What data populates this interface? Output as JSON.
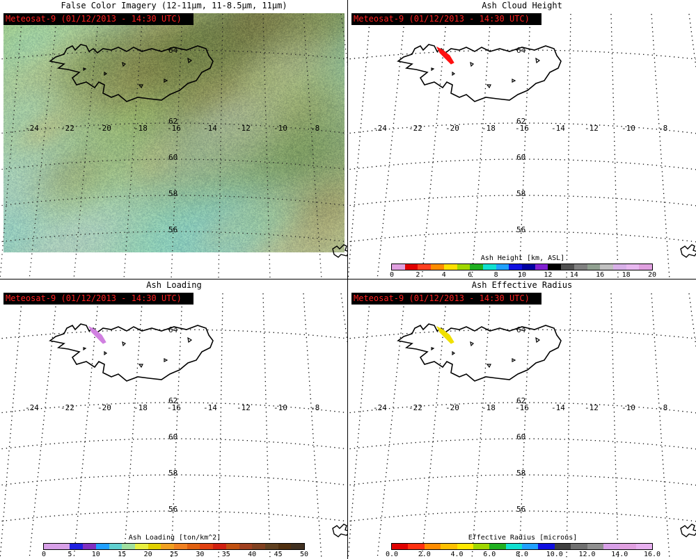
{
  "source": "Meteosat-9  (01/12/2013 - 14:30 UTC)",
  "lat_labels": [
    "64",
    "62",
    "60",
    "58",
    "56"
  ],
  "lon_labels": [
    "-24",
    "-22",
    "-20",
    "-18",
    "-16",
    "-14",
    "-12",
    "-10",
    "-8"
  ],
  "panels": [
    {
      "title": "False Color Imagery (12-11μm, 11-8.5μm, 11μm)",
      "kind": "false-color"
    },
    {
      "title": "Ash Cloud Height",
      "plume_color": "#ff1010",
      "colorbar": {
        "label": "Ash Height [km, ASL]",
        "ticks": [
          "0",
          "2",
          "4",
          "6",
          "8",
          "10",
          "12",
          "14",
          "16",
          "18",
          "20"
        ],
        "colors": [
          "#e0a0e0",
          "#e00000",
          "#ff4020",
          "#ff8c00",
          "#ffe000",
          "#a0d800",
          "#20b020",
          "#10e0d0",
          "#20a0ff",
          "#1010e0",
          "#0000a0",
          "#8020d0",
          "#000000",
          "#505050",
          "#808080",
          "#90a090",
          "#c0c0c0",
          "#d8b0e8",
          "#e8b8f0",
          "#e0a0e0"
        ]
      }
    },
    {
      "title": "Ash Loading",
      "plume_color": "#d080e0",
      "colorbar": {
        "label": "Ash Loading [ton/km^2]",
        "ticks": [
          "0",
          "5",
          "10",
          "15",
          "20",
          "25",
          "30",
          "35",
          "40",
          "45",
          "50"
        ],
        "colors": [
          "#d8a0e8",
          "#d8a0e8",
          "#2020e0",
          "#8030c0",
          "#20a0ff",
          "#60d0d0",
          "#a0e0a0",
          "#e8f040",
          "#e0d000",
          "#f0a020",
          "#f08020",
          "#e06010",
          "#e04010",
          "#d02010",
          "#c05010",
          "#a04020",
          "#804020",
          "#604020",
          "#503010",
          "#403020"
        ]
      }
    },
    {
      "title": "Ash Effective Radius",
      "plume_color": "#f0e000",
      "colorbar": {
        "label": "Effective Radius [microns]",
        "ticks": [
          "0.0",
          "2.0",
          "4.0",
          "6.0",
          "8.0",
          "10.0",
          "12.0",
          "14.0",
          "16.0"
        ],
        "colors": [
          "#e00000",
          "#ff3010",
          "#ff8c00",
          "#ffc000",
          "#ffe800",
          "#a0d800",
          "#20b020",
          "#10e0d0",
          "#20a0ff",
          "#1010e0",
          "#404040",
          "#707070",
          "#909090",
          "#d8a0e8",
          "#e0a0e0",
          "#e8b0f0"
        ]
      }
    }
  ]
}
